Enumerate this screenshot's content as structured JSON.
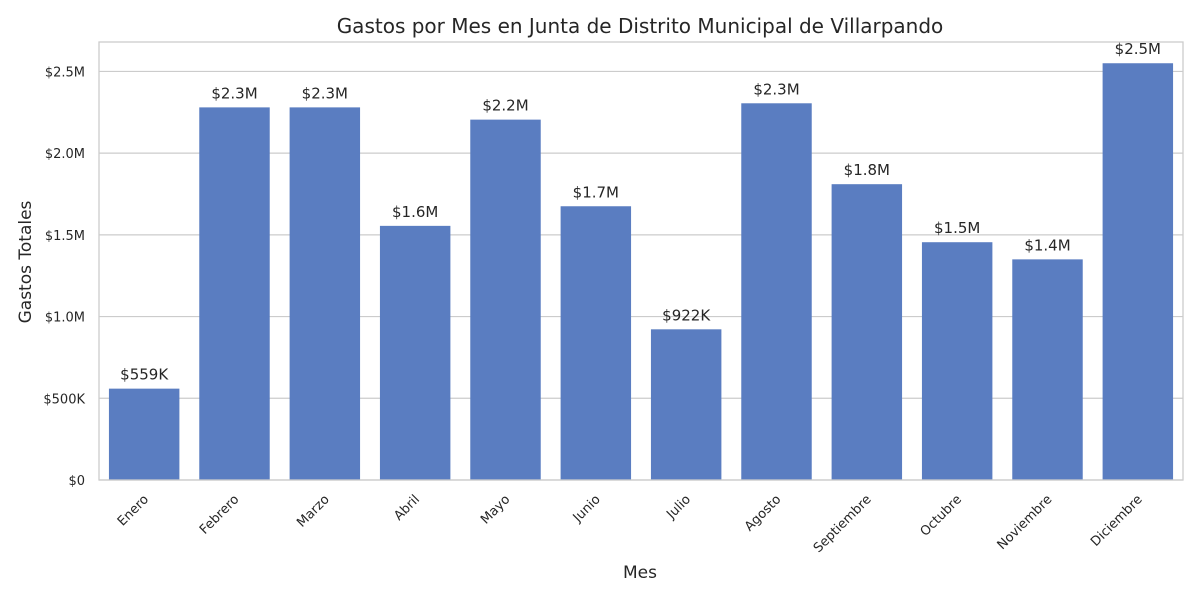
{
  "chart_data": {
    "type": "bar",
    "title": "Gastos por Mes en Junta de Distrito Municipal de Villarpando",
    "xlabel": "Mes",
    "ylabel": "Gastos Totales",
    "categories": [
      "Enero",
      "Febrero",
      "Marzo",
      "Abril",
      "Mayo",
      "Junio",
      "Julio",
      "Agosto",
      "Septiembre",
      "Octubre",
      "Noviembre",
      "Diciembre"
    ],
    "values": [
      559000,
      2280000,
      2280000,
      1555000,
      2205000,
      1675000,
      922000,
      2305000,
      1810000,
      1455000,
      1350000,
      2550000
    ],
    "data_labels": [
      "$559K",
      "$2.3M",
      "$2.3M",
      "$1.6M",
      "$2.2M",
      "$1.7M",
      "$922K",
      "$2.3M",
      "$1.8M",
      "$1.5M",
      "$1.4M",
      "$2.5M"
    ],
    "ylim": [
      0,
      2680000
    ],
    "y_ticks": [
      0,
      500000,
      1000000,
      1500000,
      2000000,
      2500000
    ],
    "y_tick_labels": [
      "$0",
      "$500K",
      "$1.0M",
      "$1.5M",
      "$2.0M",
      "$2.5M"
    ],
    "grid": true,
    "bar_color": "#5a7dc1"
  }
}
